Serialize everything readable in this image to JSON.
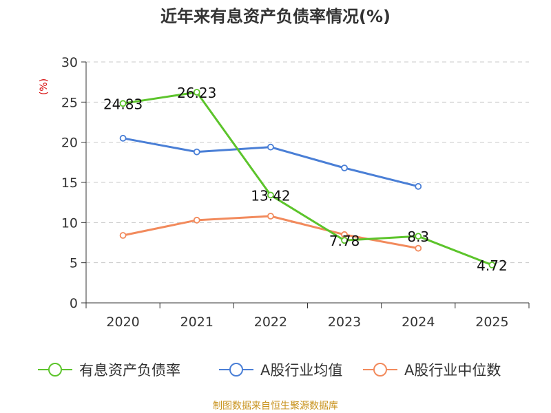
{
  "chart_data": {
    "type": "line",
    "title": "近年来有息资产负债率情况(%)",
    "ylabel": "(%)",
    "xlabel": "",
    "categories": [
      "2020",
      "2021",
      "2022",
      "2023",
      "2024",
      "2025"
    ],
    "ylim": [
      0,
      30
    ],
    "yticks": [
      "0",
      "5",
      "10",
      "15",
      "20",
      "25",
      "30"
    ],
    "grid": true,
    "legend_position": "bottom",
    "series": [
      {
        "name": "有息资产负债率",
        "color": "#5cc42b",
        "values": [
          24.83,
          26.23,
          13.42,
          7.78,
          8.3,
          4.72
        ],
        "labels": [
          "24.83",
          "26.23",
          "13.42",
          "7.78",
          "8.3",
          "4.72"
        ]
      },
      {
        "name": "A股行业均值",
        "color": "#4a7fd6",
        "values": [
          20.5,
          18.8,
          19.4,
          16.8,
          14.5,
          null
        ]
      },
      {
        "name": "A股行业中位数",
        "color": "#f28a5c",
        "values": [
          8.4,
          10.3,
          10.8,
          8.5,
          6.8,
          null
        ]
      }
    ]
  },
  "source": "制图数据来自恒生聚源数据库"
}
